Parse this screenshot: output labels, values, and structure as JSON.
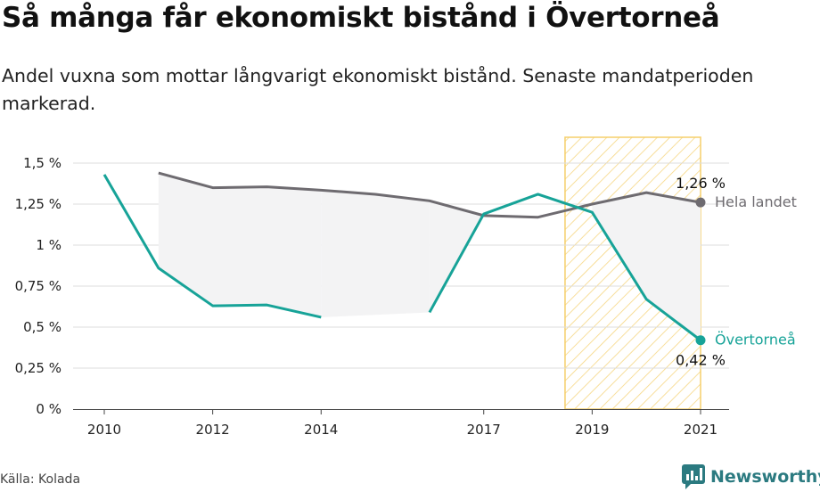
{
  "header": {
    "title": "Så många får ekonomiskt bistånd i Övertorneå",
    "subtitle": "Andel vuxna som mottar långvarigt ekonomiskt bistånd. Senaste mandatperioden markerad."
  },
  "footer": {
    "source": "Källa: Kolada",
    "brand": "Newsworthy"
  },
  "colors": {
    "national": "#6e6b70",
    "municipality": "#17a398",
    "period_highlight": "#f5cf6b",
    "grid": "#dddddd",
    "gap_fill": "#f3f3f4",
    "brand": "#2b7a80"
  },
  "chart_data": {
    "type": "line",
    "x_ticks": [
      2010,
      2012,
      2014,
      2017,
      2019,
      2021
    ],
    "y_ticks": [
      0,
      0.25,
      0.5,
      0.75,
      1,
      1.25,
      1.5
    ],
    "y_tick_labels": [
      "0 %",
      "0,25 %",
      "0,5 %",
      "0,75 %",
      "1 %",
      "1,25 %",
      "1,5 %"
    ],
    "xlim": [
      2010,
      2021
    ],
    "ylim": [
      0,
      1.5
    ],
    "grid": true,
    "highlight_period": [
      2018.5,
      2021
    ],
    "series": [
      {
        "name": "Hela landet",
        "color": "#6e6b70",
        "end_label": "1,26 %",
        "points": [
          [
            2011,
            1.44
          ],
          [
            2012,
            1.35
          ],
          [
            2013,
            1.355
          ],
          [
            2014,
            1.335
          ],
          [
            2015,
            1.31
          ],
          [
            2016,
            1.27
          ],
          [
            2017,
            1.18
          ],
          [
            2018,
            1.17
          ],
          [
            2019,
            1.25
          ],
          [
            2020,
            1.32
          ],
          [
            2021,
            1.26
          ]
        ]
      },
      {
        "name": "Övertorneå",
        "color": "#17a398",
        "end_label": "0,42 %",
        "segments": [
          [
            [
              2010,
              1.43
            ],
            [
              2011,
              0.86
            ],
            [
              2012,
              0.63
            ],
            [
              2013,
              0.635
            ],
            [
              2014,
              0.56
            ]
          ],
          [
            [
              2016,
              0.59
            ],
            [
              2017,
              1.19
            ],
            [
              2018,
              1.31
            ],
            [
              2019,
              1.2
            ],
            [
              2020,
              0.67
            ],
            [
              2021,
              0.42
            ]
          ]
        ]
      }
    ]
  }
}
